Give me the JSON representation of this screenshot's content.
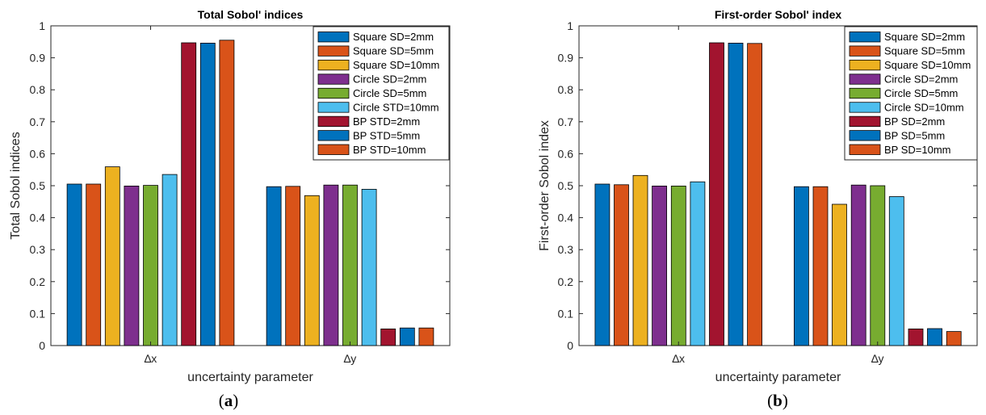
{
  "chart_data": [
    {
      "type": "bar",
      "title": "Total Sobol' indices",
      "xlabel": "uncertainty parameter",
      "ylabel": "Total Sobol indices",
      "categories": [
        "∆x",
        "∆y"
      ],
      "ylim": [
        0,
        1
      ],
      "yticks": [
        "0",
        "0.1",
        "0.2",
        "0.3",
        "0.4",
        "0.5",
        "0.6",
        "0.7",
        "0.8",
        "0.9",
        "1"
      ],
      "legend_position": "top-right",
      "grid": false,
      "panel_label": "(a)",
      "series": [
        {
          "name": "Square SD=2mm",
          "color": "#0072bd",
          "values": [
            0.505,
            0.497
          ]
        },
        {
          "name": "Square SD=5mm",
          "color": "#d95319",
          "values": [
            0.505,
            0.498
          ]
        },
        {
          "name": "Square SD=10mm",
          "color": "#edb120",
          "values": [
            0.559,
            0.469
          ]
        },
        {
          "name": "Circle SD=2mm",
          "color": "#7e2f8e",
          "values": [
            0.499,
            0.502
          ]
        },
        {
          "name": "Circle SD=5mm",
          "color": "#77ac30",
          "values": [
            0.501,
            0.502
          ]
        },
        {
          "name": "Circle STD=10mm",
          "color": "#4dbeee",
          "values": [
            0.535,
            0.489
          ]
        },
        {
          "name": "BP STD=2mm",
          "color": "#a2142f",
          "values": [
            0.947,
            0.052
          ]
        },
        {
          "name": "BP STD=5mm",
          "color": "#0072bd",
          "values": [
            0.946,
            0.055
          ]
        },
        {
          "name": "BP STD=10mm",
          "color": "#d95319",
          "values": [
            0.955,
            0.055
          ]
        }
      ]
    },
    {
      "type": "bar",
      "title": "First-order Sobol' index",
      "xlabel": "uncertainty parameter",
      "ylabel": "First-order Sobol index",
      "categories": [
        "∆x",
        "∆y"
      ],
      "ylim": [
        0,
        1
      ],
      "yticks": [
        "0",
        "0.1",
        "0.2",
        "0.3",
        "0.4",
        "0.5",
        "0.6",
        "0.7",
        "0.8",
        "0.9",
        "1"
      ],
      "legend_position": "top-right",
      "grid": false,
      "panel_label": "(b)",
      "series": [
        {
          "name": "Square SD=2mm",
          "color": "#0072bd",
          "values": [
            0.505,
            0.497
          ]
        },
        {
          "name": "Square SD=5mm",
          "color": "#d95319",
          "values": [
            0.503,
            0.497
          ]
        },
        {
          "name": "Square SD=10mm",
          "color": "#edb120",
          "values": [
            0.532,
            0.442
          ]
        },
        {
          "name": "Circle SD=2mm",
          "color": "#7e2f8e",
          "values": [
            0.499,
            0.502
          ]
        },
        {
          "name": "Circle SD=5mm",
          "color": "#77ac30",
          "values": [
            0.499,
            0.5
          ]
        },
        {
          "name": "Circle SD=10mm",
          "color": "#4dbeee",
          "values": [
            0.512,
            0.466
          ]
        },
        {
          "name": "BP SD=2mm",
          "color": "#a2142f",
          "values": [
            0.947,
            0.052
          ]
        },
        {
          "name": "BP SD=5mm",
          "color": "#0072bd",
          "values": [
            0.946,
            0.053
          ]
        },
        {
          "name": "BP SD=10mm",
          "color": "#d95319",
          "values": [
            0.945,
            0.044
          ]
        }
      ]
    }
  ]
}
